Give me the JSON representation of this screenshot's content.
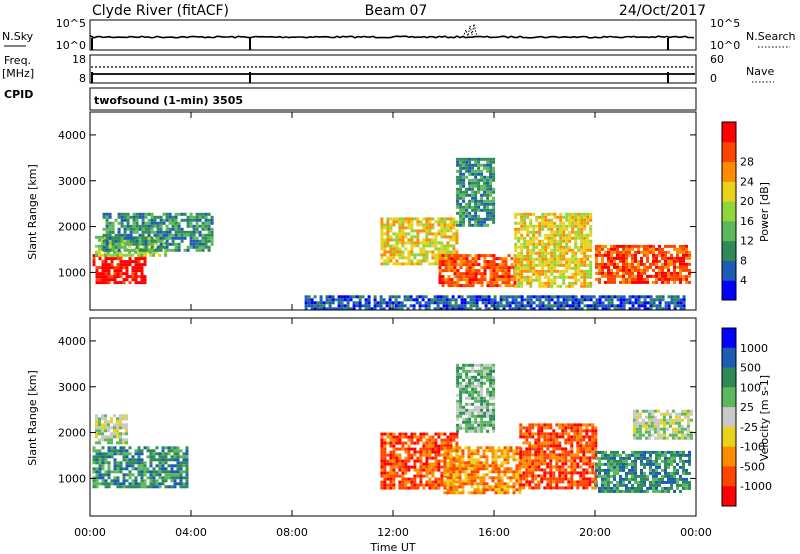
{
  "header": {
    "station": "Clyde River (fitACF)",
    "beam": "Beam 07",
    "date": "24/Oct/2017"
  },
  "noise_panel": {
    "left_label": "N.Sky",
    "left_ticks": [
      "10^5",
      "10^0"
    ],
    "right_label": "N.Search",
    "right_ticks": [
      "10^5",
      "10^0"
    ]
  },
  "freq_panel": {
    "left_label_1": "Freq.",
    "left_label_2": "[MHz]",
    "left_ticks": [
      "18",
      "8"
    ],
    "right_label": "Nave",
    "right_ticks": [
      "60",
      "0"
    ]
  },
  "cpid": {
    "label": "CPID",
    "program": "twofsound (1-min) 3505"
  },
  "colors": {
    "power": [
      "#0000ff",
      "#1d5cb5",
      "#2e8b57",
      "#5cb85c",
      "#8fd63a",
      "#e8d21a",
      "#ff8c00",
      "#ff4500",
      "#ff0000"
    ],
    "velocity": [
      "#0000ff",
      "#1d5cb5",
      "#2e8b57",
      "#5cb85c",
      "#c8c8c8",
      "#e8d21a",
      "#ff8c00",
      "#ff4500",
      "#ff0000"
    ]
  },
  "chart_data": [
    {
      "type": "heatmap",
      "name": "power-panel",
      "ylabel": "Slant Range [km]",
      "yticks": [
        "1000",
        "2000",
        "3000",
        "4000"
      ],
      "xticks": [
        "00:00",
        "04:00",
        "08:00",
        "12:00",
        "16:00",
        "20:00",
        "00:00"
      ],
      "colorbar_label": "Power [dB]",
      "colorbar_ticks": [
        "4",
        "8",
        "12",
        "16",
        "20",
        "24",
        "28"
      ],
      "ylim": [
        180,
        4500
      ],
      "xlim": [
        0,
        24
      ],
      "regions": [
        {
          "x": [
            0.1,
            2.2
          ],
          "y": [
            800,
            1400
          ],
          "level": 8
        },
        {
          "x": [
            0.2,
            3.0
          ],
          "y": [
            1400,
            1800
          ],
          "level": 4
        },
        {
          "x": [
            0.5,
            4.8
          ],
          "y": [
            1500,
            2300
          ],
          "level": 2
        },
        {
          "x": [
            11.5,
            14.5
          ],
          "y": [
            1200,
            2200
          ],
          "level": 5
        },
        {
          "x": [
            13.8,
            16.8
          ],
          "y": [
            700,
            1400
          ],
          "level": 7
        },
        {
          "x": [
            16.8,
            19.8
          ],
          "y": [
            700,
            2300
          ],
          "level": 5
        },
        {
          "x": [
            20.0,
            23.8
          ],
          "y": [
            800,
            1600
          ],
          "level": 7
        },
        {
          "x": [
            14.5,
            16.0
          ],
          "y": [
            2000,
            3500
          ],
          "level": 2
        },
        {
          "x": [
            8.5,
            23.5
          ],
          "y": [
            200,
            500
          ],
          "level": 1
        }
      ]
    },
    {
      "type": "heatmap",
      "name": "velocity-panel",
      "ylabel": "Slant Range [km]",
      "yticks": [
        "1000",
        "2000",
        "3000",
        "4000"
      ],
      "xticks": [
        "00:00",
        "04:00",
        "08:00",
        "12:00",
        "16:00",
        "20:00",
        "00:00"
      ],
      "xlabel": "Time UT",
      "colorbar_label": "Velocity [m s-1]",
      "colorbar_ticks": [
        "1000",
        "500",
        "100",
        "25",
        "-25",
        "-100",
        "-500",
        "-1000"
      ],
      "ylim": [
        180,
        4500
      ],
      "xlim": [
        0,
        24
      ],
      "regions": [
        {
          "x": [
            0.1,
            3.8
          ],
          "y": [
            800,
            1700
          ],
          "level": 2
        },
        {
          "x": [
            0.2,
            1.5
          ],
          "y": [
            1800,
            2400
          ],
          "level": 4
        },
        {
          "x": [
            11.5,
            14.5
          ],
          "y": [
            800,
            2000
          ],
          "level": 7
        },
        {
          "x": [
            14.0,
            17.0
          ],
          "y": [
            700,
            1700
          ],
          "level": 6
        },
        {
          "x": [
            17.0,
            20.0
          ],
          "y": [
            800,
            2200
          ],
          "level": 7
        },
        {
          "x": [
            20.0,
            23.8
          ],
          "y": [
            700,
            1600
          ],
          "level": 2
        },
        {
          "x": [
            21.5,
            23.8
          ],
          "y": [
            1900,
            2500
          ],
          "level": 4
        },
        {
          "x": [
            14.5,
            16.0
          ],
          "y": [
            2000,
            3500
          ],
          "level": 3
        }
      ]
    }
  ]
}
